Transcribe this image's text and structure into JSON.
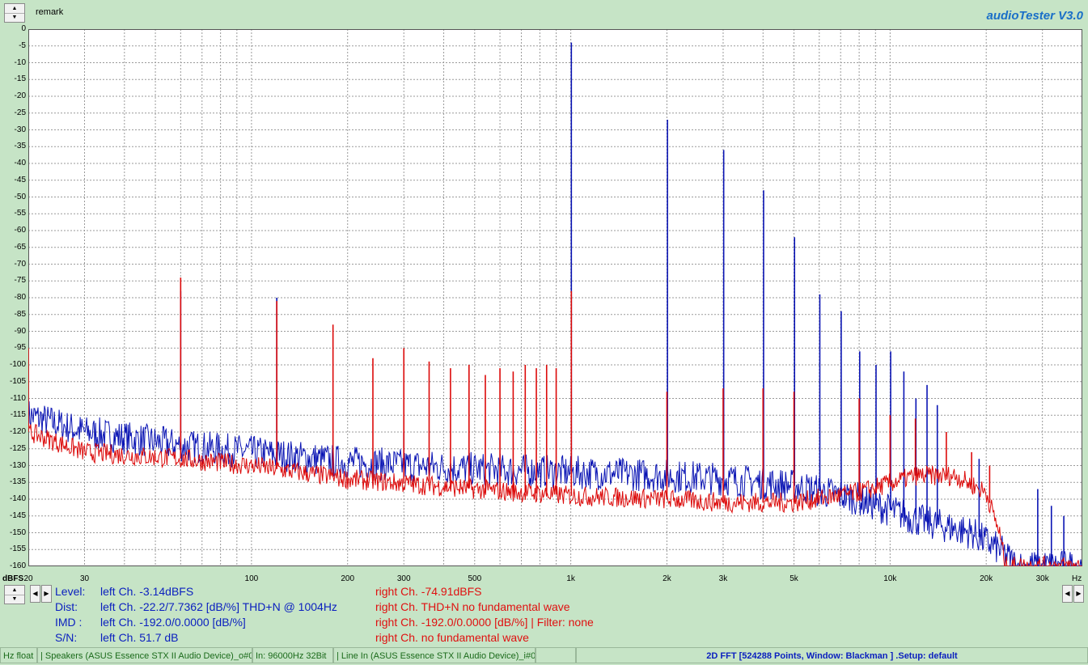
{
  "window": {
    "remark": "remark",
    "brand": "audioTester  V3.0"
  },
  "axis": {
    "y_unit": "dBFS",
    "x_unit": "Hz"
  },
  "stats": {
    "left": [
      {
        "label": "Level:",
        "value": "left Ch. -3.14dBFS"
      },
      {
        "label": "Dist:",
        "value": "left Ch. -22.2/7.7362 [dB/%] THD+N  @ 1004Hz"
      },
      {
        "label": "IMD  :",
        "value": "left Ch. -192.0/0.0000 [dB/%]"
      },
      {
        "label": "S/N:",
        "value": "left Ch. 51.7 dB"
      }
    ],
    "right": [
      "right Ch. -74.91dBFS",
      "right Ch. THD+N  no fundamental wave",
      "right Ch. -192.0/0.0000 [dB/%] |   Filter: none",
      "right Ch.  no fundamental wave"
    ]
  },
  "statusbar": {
    "out_format": "Hz float",
    "out_device": "| Speakers (ASUS Essence STX II Audio Device)_o#0",
    "in_format": "In: 96000Hz 32Bit",
    "in_device": "| Line In (ASUS Essence STX II Audio Device)_i#0",
    "fft_info": "2D FFT [524288 Points, Window: Blackman ] .Setup:  default"
  },
  "chart_data": {
    "type": "line",
    "title": "",
    "xlabel": "Hz",
    "ylabel": "dBFS",
    "x_scale": "log",
    "xlim": [
      20,
      40000
    ],
    "ylim": [
      -160,
      0
    ],
    "grid": true,
    "x_ticks": [
      {
        "v": 20,
        "label": "20"
      },
      {
        "v": 30,
        "label": "30"
      },
      {
        "v": 100,
        "label": "100"
      },
      {
        "v": 200,
        "label": "200"
      },
      {
        "v": 300,
        "label": "300"
      },
      {
        "v": 500,
        "label": "500"
      },
      {
        "v": 1000,
        "label": "1k"
      },
      {
        "v": 2000,
        "label": "2k"
      },
      {
        "v": 3000,
        "label": "3k"
      },
      {
        "v": 5000,
        "label": "5k"
      },
      {
        "v": 10000,
        "label": "10k"
      },
      {
        "v": 20000,
        "label": "20k"
      },
      {
        "v": 30000,
        "label": "30k"
      }
    ],
    "y_ticks": [
      0,
      -5,
      -10,
      -15,
      -20,
      -25,
      -30,
      -35,
      -40,
      -45,
      -50,
      -55,
      -60,
      -65,
      -70,
      -75,
      -80,
      -85,
      -90,
      -95,
      -100,
      -105,
      -110,
      -115,
      -120,
      -125,
      -130,
      -135,
      -140,
      -145,
      -150,
      -155,
      -160
    ],
    "series": [
      {
        "color": "#0a14b4",
        "floor": [
          [
            20,
            -115
          ],
          [
            30,
            -120
          ],
          [
            60,
            -124
          ],
          [
            100,
            -126
          ],
          [
            200,
            -129
          ],
          [
            500,
            -131
          ],
          [
            1000,
            -132
          ],
          [
            2000,
            -133
          ],
          [
            3000,
            -134
          ],
          [
            5000,
            -136
          ],
          [
            8000,
            -140
          ],
          [
            12000,
            -146
          ],
          [
            18000,
            -150
          ],
          [
            22000,
            -155
          ],
          [
            25000,
            -160
          ],
          [
            40000,
            -160
          ]
        ],
        "peaks": [
          [
            20,
            -110
          ],
          [
            60,
            -78
          ],
          [
            120,
            -80
          ],
          [
            180,
            -128
          ],
          [
            300,
            -120
          ],
          [
            1004,
            -4
          ],
          [
            2008,
            -27
          ],
          [
            3012,
            -36
          ],
          [
            4016,
            -48
          ],
          [
            5020,
            -62
          ],
          [
            6024,
            -79
          ],
          [
            7028,
            -84
          ],
          [
            8032,
            -96
          ],
          [
            9036,
            -100
          ],
          [
            10040,
            -96
          ],
          [
            11044,
            -102
          ],
          [
            12048,
            -110
          ],
          [
            13052,
            -106
          ],
          [
            14056,
            -112
          ],
          [
            19000,
            -128
          ],
          [
            29000,
            -137
          ],
          [
            32000,
            -142
          ],
          [
            35000,
            -145
          ]
        ]
      },
      {
        "color": "#dc0a0a",
        "floor": [
          [
            20,
            -120
          ],
          [
            30,
            -126
          ],
          [
            60,
            -128
          ],
          [
            100,
            -130
          ],
          [
            200,
            -134
          ],
          [
            500,
            -137
          ],
          [
            1000,
            -139
          ],
          [
            2000,
            -140
          ],
          [
            3000,
            -141
          ],
          [
            5000,
            -141
          ],
          [
            8000,
            -138
          ],
          [
            12000,
            -133
          ],
          [
            16000,
            -133
          ],
          [
            20000,
            -138
          ],
          [
            22000,
            -150
          ],
          [
            23000,
            -160
          ],
          [
            40000,
            -160
          ]
        ],
        "peaks": [
          [
            20,
            -95
          ],
          [
            60,
            -74
          ],
          [
            120,
            -81
          ],
          [
            180,
            -88
          ],
          [
            240,
            -98
          ],
          [
            300,
            -95
          ],
          [
            360,
            -99
          ],
          [
            420,
            -101
          ],
          [
            480,
            -100
          ],
          [
            540,
            -103
          ],
          [
            600,
            -101
          ],
          [
            660,
            -102
          ],
          [
            720,
            -100
          ],
          [
            780,
            -101
          ],
          [
            840,
            -100
          ],
          [
            900,
            -101
          ],
          [
            1004,
            -78
          ],
          [
            2000,
            -108
          ],
          [
            3000,
            -107
          ],
          [
            4000,
            -107
          ],
          [
            5000,
            -108
          ],
          [
            8000,
            -110
          ],
          [
            10000,
            -115
          ],
          [
            12000,
            -116
          ],
          [
            15000,
            -120
          ],
          [
            18000,
            -126
          ],
          [
            20500,
            -130
          ]
        ]
      }
    ]
  }
}
